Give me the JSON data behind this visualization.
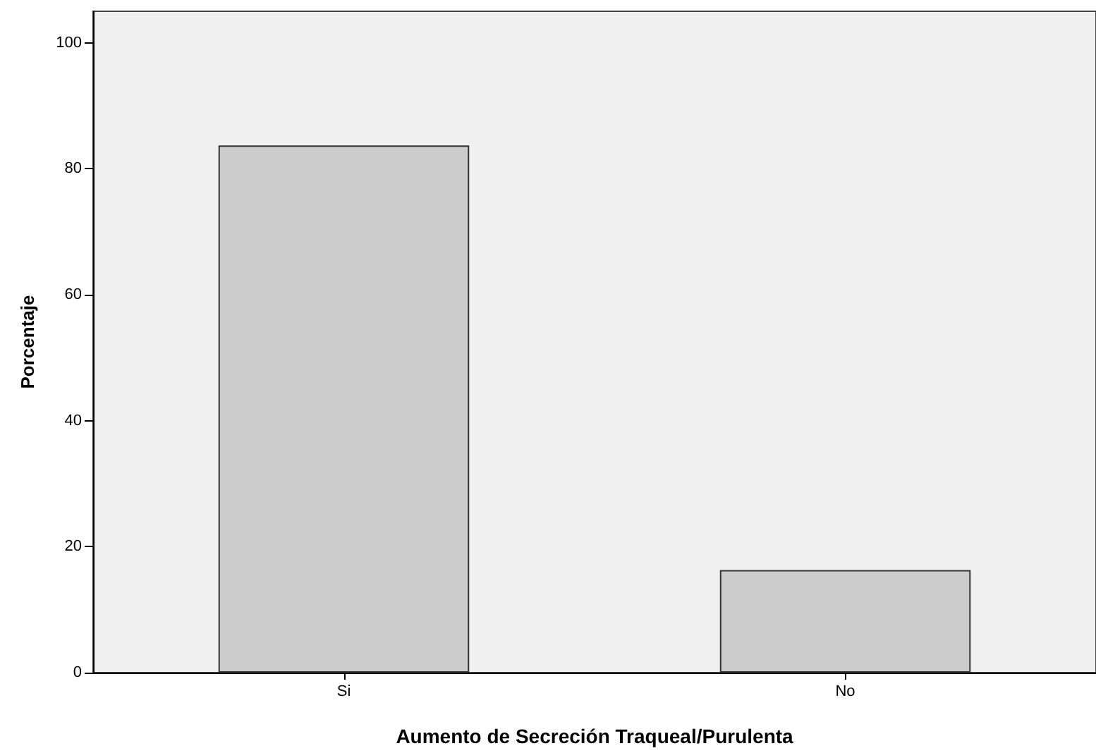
{
  "chart_data": {
    "type": "bar",
    "xlabel": "Aumento de Secreción Traqueal/Purulenta",
    "ylabel": "Porcentaje",
    "categories": [
      "Si",
      "No"
    ],
    "values": [
      83.7,
      16.3
    ],
    "color": "#cccccc",
    "ylim": [
      0,
      105
    ],
    "yticks": [
      0,
      20,
      40,
      60,
      80,
      100
    ],
    "grid": false
  }
}
